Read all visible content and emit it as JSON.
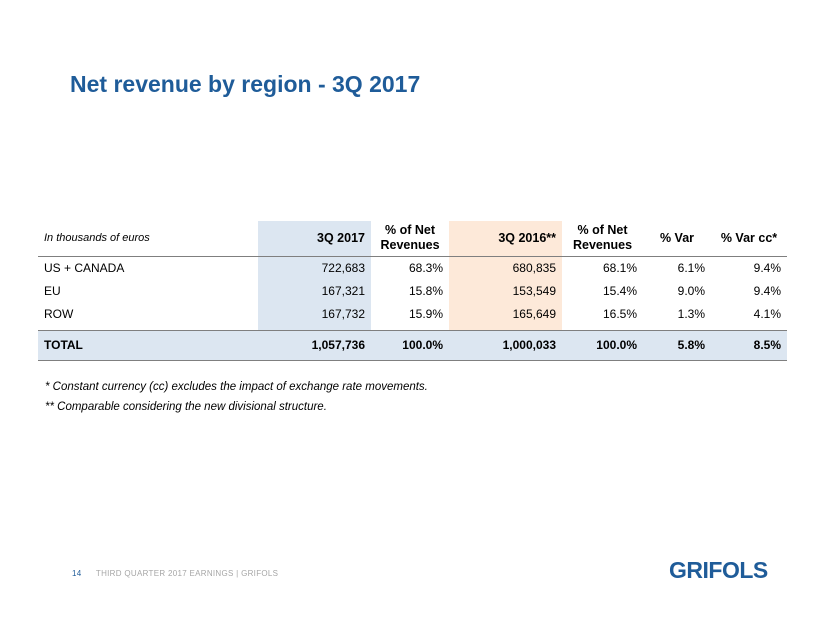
{
  "title": "Net revenue by region - 3Q 2017",
  "table": {
    "unit_label": "In thousands of euros",
    "headers": {
      "col1": "3Q 2017",
      "col2_line1": "% of Net",
      "col2_line2": "Revenues",
      "col3": "3Q 2016**",
      "col4_line1": "% of Net",
      "col4_line2": "Revenues",
      "col5": "% Var",
      "col6": "% Var cc*"
    },
    "rows": [
      {
        "region": "US + CANADA",
        "q3_2017": "722,683",
        "pct_2017": "68.3%",
        "q3_2016": "680,835",
        "pct_2016": "68.1%",
        "var": "6.1%",
        "var_cc": "9.4%"
      },
      {
        "region": "EU",
        "q3_2017": "167,321",
        "pct_2017": "15.8%",
        "q3_2016": "153,549",
        "pct_2016": "15.4%",
        "var": "9.0%",
        "var_cc": "9.4%"
      },
      {
        "region": "ROW",
        "q3_2017": "167,732",
        "pct_2017": "15.9%",
        "q3_2016": "165,649",
        "pct_2016": "16.5%",
        "var": "1.3%",
        "var_cc": "4.1%"
      }
    ],
    "total": {
      "region": "TOTAL",
      "q3_2017": "1,057,736",
      "pct_2017": "100.0%",
      "q3_2016": "1,000,033",
      "pct_2016": "100.0%",
      "var": "5.8%",
      "var_cc": "8.5%"
    }
  },
  "notes": [
    "* Constant currency (cc) excludes the impact of exchange rate movements.",
    "** Comparable considering the new divisional structure."
  ],
  "footer": {
    "page": "14",
    "text": "THIRD QUARTER 2017 EARNINGS  | GRIFOLS"
  },
  "logo": "GRIFOLS",
  "colors": {
    "title": "#1f5c99",
    "highlight_2017": "#dce6f1",
    "highlight_2016": "#fde9d9"
  }
}
